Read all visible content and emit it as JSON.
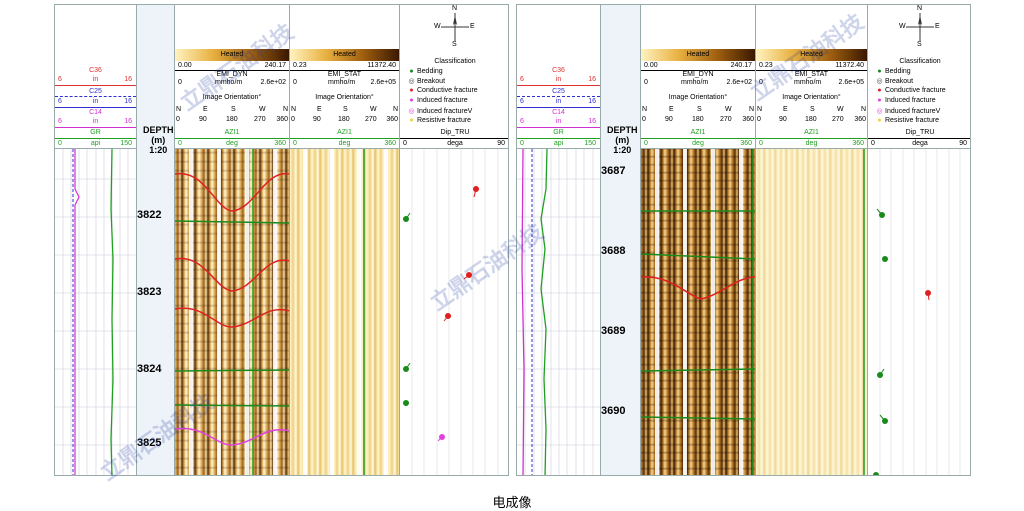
{
  "caption": "电成像",
  "watermark": "立鼎石油科技",
  "curves": [
    {
      "name": "C36",
      "color": "#e03030",
      "min": "6",
      "unit": "in",
      "max": "16"
    },
    {
      "name": "C25",
      "color": "#3030d0",
      "min": "6",
      "unit": "in",
      "max": "16"
    },
    {
      "name": "C14",
      "color": "#d030d0",
      "min": "6",
      "unit": "in",
      "max": "16"
    },
    {
      "name": "GR",
      "color": "#20a020",
      "min": "0",
      "unit": "api",
      "max": "150"
    }
  ],
  "depth_header": {
    "title": "DEPTH",
    "unit": "(m)",
    "scale": "1:20"
  },
  "dyn": {
    "heated": "Heated",
    "min": "0.00",
    "max": "240.17",
    "name": "EMI_DYN",
    "c0": "0",
    "unit": "mmho/m",
    "cmax": "2.6e+02",
    "orient": "Image Orientation°",
    "dirs": [
      "N",
      "E",
      "S",
      "W",
      "N"
    ],
    "ticks": [
      "0",
      "90",
      "180",
      "270",
      "360"
    ],
    "azi": "AZI1",
    "azimin": "0",
    "aziunit": "deg",
    "azimax": "360"
  },
  "stat": {
    "heated": "Heated",
    "min": "0.23",
    "max": "11372.40",
    "name": "EMI_STAT",
    "c0": "0",
    "unit": "mmho/m",
    "cmax": "2.6e+05",
    "orient": "Image Orientation°",
    "dirs": [
      "N",
      "E",
      "S",
      "W",
      "N"
    ],
    "ticks": [
      "0",
      "90",
      "180",
      "270",
      "360"
    ],
    "azi": "AZI1",
    "azimin": "0",
    "aziunit": "deg",
    "azimax": "360"
  },
  "classification": {
    "title": "Classification",
    "compass": {
      "n": "N",
      "e": "E",
      "s": "S",
      "w": "W"
    },
    "items": [
      {
        "marker": "●",
        "color": "#1a8a1a",
        "label": "Bedding"
      },
      {
        "marker": "◎",
        "color": "#444444",
        "label": "Breakout"
      },
      {
        "marker": "●",
        "color": "#e02020",
        "label": "Conductive fracture"
      },
      {
        "marker": "●",
        "color": "#e040e0",
        "label": "Induced fracture"
      },
      {
        "marker": "◎",
        "color": "#e040e0",
        "label": "Induced fractureV"
      },
      {
        "marker": "●",
        "color": "#f0d040",
        "label": "Resistive fracture"
      }
    ],
    "dip": "Dip_TRU",
    "dip_min": "0",
    "dip_unit": "dega",
    "dip_max": "90"
  },
  "left_depths": [
    "3822",
    "3823",
    "3824",
    "3825"
  ],
  "right_depths": [
    "3687",
    "3688",
    "3689",
    "3690"
  ],
  "colors": {
    "rule_red": "#e03030",
    "rule_blue": "#3030d0",
    "rule_magenta": "#d030d0",
    "rule_green": "#20a020"
  }
}
